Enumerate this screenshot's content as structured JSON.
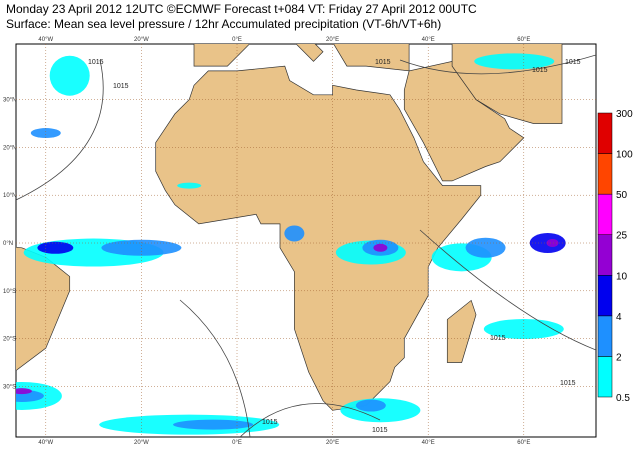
{
  "header": {
    "line1": "Monday 23 April 2012 12UTC ©ECMWF Forecast t+084 VT: Friday 27 April 2012 00UTC",
    "line2": "Surface: Mean sea level pressure / 12hr Accumulated precipitation (VT-6h/VT+6h)"
  },
  "map": {
    "lon_ticks": [
      {
        "value": -40,
        "label": "40°W"
      },
      {
        "value": -20,
        "label": "20°W"
      },
      {
        "value": 0,
        "label": "0°E"
      },
      {
        "value": 20,
        "label": "20°E"
      },
      {
        "value": 40,
        "label": "40°E"
      },
      {
        "value": 60,
        "label": "60°E"
      }
    ],
    "lat_ticks": [
      {
        "value": 30,
        "label": "30°N"
      },
      {
        "value": 20,
        "label": "20°N"
      },
      {
        "value": 10,
        "label": "10°N"
      },
      {
        "value": 0,
        "label": "0°N"
      },
      {
        "value": -10,
        "label": "10°S"
      },
      {
        "value": -20,
        "label": "20°S"
      },
      {
        "value": -30,
        "label": "30°S"
      }
    ],
    "isobar_labels": [
      "1015",
      "1015",
      "1015",
      "1015",
      "1015",
      "1015",
      "1015",
      "1015",
      "1015"
    ]
  },
  "legend": {
    "levels": [
      0.5,
      2,
      4,
      10,
      25,
      50,
      100,
      300
    ],
    "colors": [
      "#00ffff",
      "#1e90ff",
      "#0000ee",
      "#9400d3",
      "#ff00ff",
      "#ff4500",
      "#e00000"
    ]
  }
}
